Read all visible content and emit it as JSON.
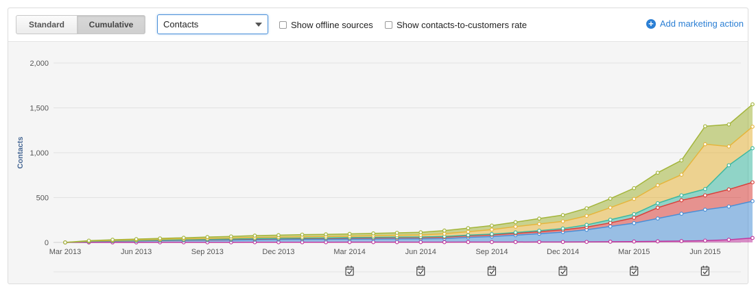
{
  "toolbar": {
    "standard_label": "Standard",
    "cumulative_label": "Cumulative",
    "metric_selected": "Contacts",
    "show_offline_label": "Show offline sources",
    "show_rate_label": "Show contacts-to-customers rate",
    "add_action_label": "Add marketing action",
    "plus_glyph": "+"
  },
  "chart_data": {
    "type": "area",
    "stacked": true,
    "ylabel": "Contacts",
    "ylim": [
      0,
      2000
    ],
    "y_ticks": [
      "0",
      "500",
      "1,000",
      "1,500",
      "2,000"
    ],
    "x_tick_labels": [
      "Mar 2013",
      "Jun 2013",
      "Sep 2013",
      "Dec 2013",
      "Mar 2014",
      "Jun 2014",
      "Sep 2014",
      "Dec 2014",
      "Mar 2015",
      "Jun 2015"
    ],
    "x": [
      "2013-03",
      "2013-04",
      "2013-05",
      "2013-06",
      "2013-07",
      "2013-08",
      "2013-09",
      "2013-10",
      "2013-11",
      "2013-12",
      "2014-01",
      "2014-02",
      "2014-03",
      "2014-04",
      "2014-05",
      "2014-06",
      "2014-07",
      "2014-08",
      "2014-09",
      "2014-10",
      "2014-11",
      "2014-12",
      "2015-01",
      "2015-02",
      "2015-03",
      "2015-04",
      "2015-05",
      "2015-06",
      "2015-07",
      "2015-08"
    ],
    "series": [
      {
        "color": "#c0379e",
        "values": [
          0,
          0,
          0,
          0,
          1,
          1,
          1,
          1,
          2,
          2,
          2,
          2,
          3,
          3,
          3,
          3,
          3,
          4,
          4,
          4,
          5,
          5,
          6,
          8,
          10,
          12,
          15,
          20,
          30,
          50
        ]
      },
      {
        "color": "#4a8fd6",
        "values": [
          0,
          10,
          14,
          17,
          19,
          22,
          24,
          26,
          28,
          30,
          31,
          32,
          33,
          34,
          36,
          37,
          40,
          52,
          62,
          77,
          92,
          110,
          135,
          170,
          205,
          255,
          305,
          345,
          370,
          410
        ]
      },
      {
        "color": "#d9403a",
        "values": [
          0,
          1,
          1,
          2,
          3,
          4,
          6,
          7,
          9,
          10,
          11,
          12,
          13,
          14,
          15,
          15,
          17,
          18,
          19,
          20,
          22,
          25,
          30,
          40,
          60,
          120,
          150,
          160,
          190,
          210
        ]
      },
      {
        "color": "#3db8a0",
        "values": [
          0,
          1,
          2,
          2,
          3,
          3,
          3,
          4,
          4,
          4,
          5,
          5,
          5,
          6,
          6,
          6,
          7,
          7,
          8,
          10,
          12,
          15,
          25,
          35,
          40,
          50,
          55,
          70,
          270,
          380
        ]
      },
      {
        "color": "#e6b53c",
        "values": [
          0,
          4,
          6,
          8,
          9,
          10,
          10,
          11,
          12,
          13,
          14,
          15,
          16,
          18,
          20,
          22,
          30,
          38,
          50,
          65,
          75,
          80,
          100,
          135,
          170,
          200,
          230,
          500,
          210,
          240
        ]
      },
      {
        "color": "#a3b53a",
        "values": [
          0,
          4,
          7,
          8,
          10,
          12,
          16,
          18,
          21,
          22,
          24,
          24,
          25,
          26,
          27,
          30,
          35,
          40,
          45,
          50,
          60,
          70,
          85,
          100,
          120,
          140,
          160,
          200,
          245,
          250
        ]
      }
    ],
    "grid": true,
    "legend": "none",
    "marketing_action_icon": "calendar-check-icon",
    "marketing_action_months": [
      "2014-03",
      "2014-06",
      "2014-09",
      "2014-12",
      "2015-03",
      "2015-06"
    ]
  }
}
